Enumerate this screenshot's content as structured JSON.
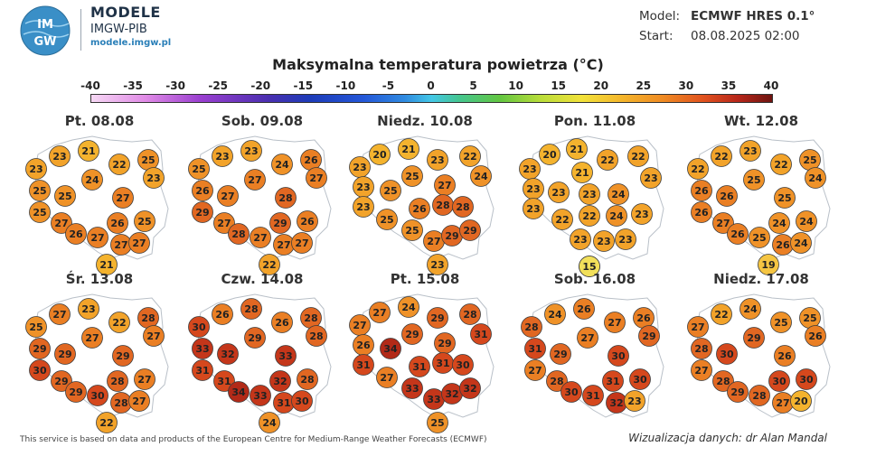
{
  "header": {
    "logo_text": "IMGW",
    "brand_title": "MODELE",
    "brand_subtitle": "IMGW-PIB",
    "brand_url": "modele.imgw.pl",
    "model_label": "Model:",
    "model_value": "ECMWF HRES 0.1°",
    "start_label": "Start:",
    "start_value": "08.08.2025 02:00"
  },
  "title": "Maksymalna temperatura powietrza (°C)",
  "scale_labels": [
    "-40",
    "-35",
    "-30",
    "-25",
    "-20",
    "-15",
    "-10",
    "-5",
    "0",
    "5",
    "10",
    "15",
    "20",
    "25",
    "30",
    "35",
    "40"
  ],
  "days": [
    {
      "label": "Pt. 08.08",
      "values": [
        23,
        21,
        22,
        25,
        23,
        23,
        24,
        25,
        25,
        27,
        25,
        27,
        26,
        25,
        26,
        27,
        27,
        27,
        21
      ]
    },
    {
      "label": "Sob. 09.08",
      "values": [
        23,
        23,
        24,
        26,
        25,
        27,
        27,
        26,
        27,
        28,
        29,
        27,
        29,
        26,
        28,
        27,
        27,
        27,
        22
      ]
    },
    {
      "label": "Niedz. 10.08",
      "values": [
        20,
        21,
        23,
        22,
        23,
        24,
        25,
        23,
        25,
        27,
        23,
        25,
        26,
        28,
        28,
        25,
        27,
        29,
        29,
        23
      ]
    },
    {
      "label": "Pon. 11.08",
      "values": [
        20,
        21,
        22,
        22,
        23,
        21,
        23,
        23,
        23,
        23,
        24,
        23,
        22,
        22,
        24,
        23,
        23,
        23,
        23,
        23,
        15
      ]
    },
    {
      "label": "Wt. 12.08",
      "values": [
        22,
        23,
        22,
        25,
        22,
        24,
        25,
        26,
        26,
        25,
        26,
        27,
        24,
        24,
        26,
        25,
        26,
        24,
        19
      ]
    },
    {
      "label": "Śr. 13.08",
      "values": [
        27,
        23,
        22,
        28,
        25,
        27,
        27,
        29,
        29,
        29,
        30,
        29,
        28,
        27,
        29,
        30,
        28,
        27,
        22
      ]
    },
    {
      "label": "Czw. 14.08",
      "values": [
        26,
        28,
        26,
        28,
        30,
        28,
        29,
        33,
        32,
        33,
        31,
        31,
        32,
        28,
        34,
        33,
        31,
        30,
        24
      ]
    },
    {
      "label": "Pt. 15.08",
      "values": [
        27,
        24,
        29,
        28,
        27,
        31,
        29,
        26,
        34,
        29,
        31,
        27,
        31,
        31,
        30,
        33,
        33,
        32,
        32,
        25
      ]
    },
    {
      "label": "Sob. 16.08",
      "values": [
        24,
        26,
        27,
        26,
        28,
        29,
        27,
        31,
        29,
        30,
        27,
        28,
        31,
        30,
        30,
        31,
        32,
        23
      ]
    },
    {
      "label": "Niedz. 17.08",
      "values": [
        22,
        24,
        25,
        25,
        27,
        26,
        29,
        28,
        30,
        26,
        27,
        28,
        30,
        30,
        29,
        28,
        27,
        20
      ]
    }
  ],
  "footer_note": "This service is based on data and products of the European Centre for Medium-Range Weather Forecasts (ECMWF)",
  "credit": "Wizualizacja danych: dr Alan Mandal"
}
